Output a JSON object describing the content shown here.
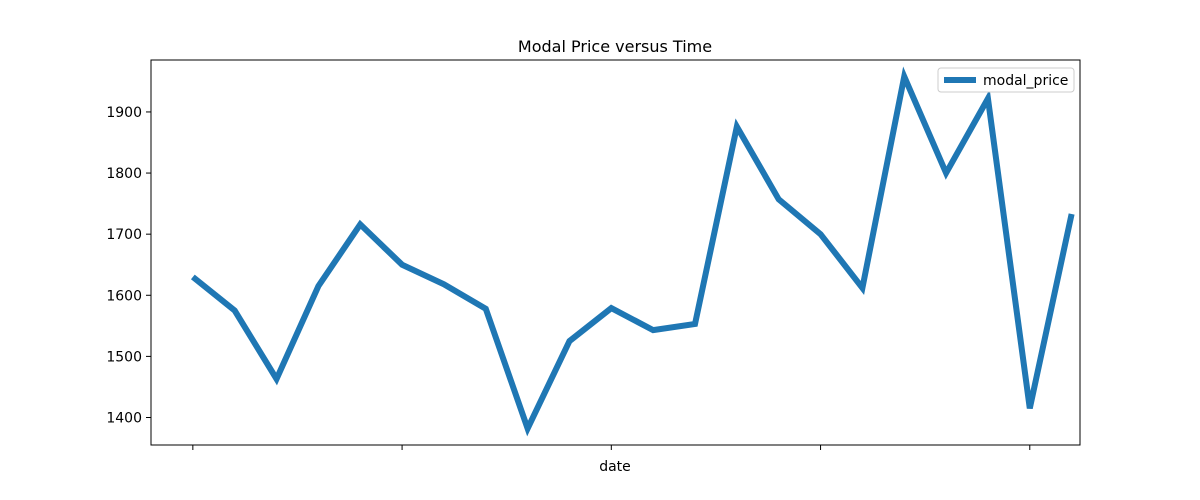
{
  "chart_data": {
    "type": "line",
    "title": "Modal Price versus Time",
    "xlabel": "date",
    "ylabel": "",
    "x_index": [
      0,
      1,
      2,
      3,
      4,
      5,
      6,
      7,
      8,
      9,
      10,
      11,
      12,
      13,
      14,
      15,
      16,
      17,
      18,
      19,
      20,
      21
    ],
    "series": [
      {
        "name": "modal_price",
        "color": "#1f77b4",
        "values": [
          1630,
          1575,
          1463,
          1615,
          1716,
          1650,
          1618,
          1578,
          1382,
          1525,
          1579,
          1543,
          1553,
          1876,
          1757,
          1700,
          1612,
          1958,
          1800,
          1922,
          1415,
          1733
        ]
      }
    ],
    "xlim": [
      -1.0,
      21.2
    ],
    "ylim": [
      1355,
      1985
    ],
    "yticks": [
      1400,
      1500,
      1600,
      1700,
      1800,
      1900
    ],
    "xticks_unlabeled": [
      0,
      5,
      10,
      15,
      20
    ],
    "grid": false,
    "legend": "top-right"
  }
}
